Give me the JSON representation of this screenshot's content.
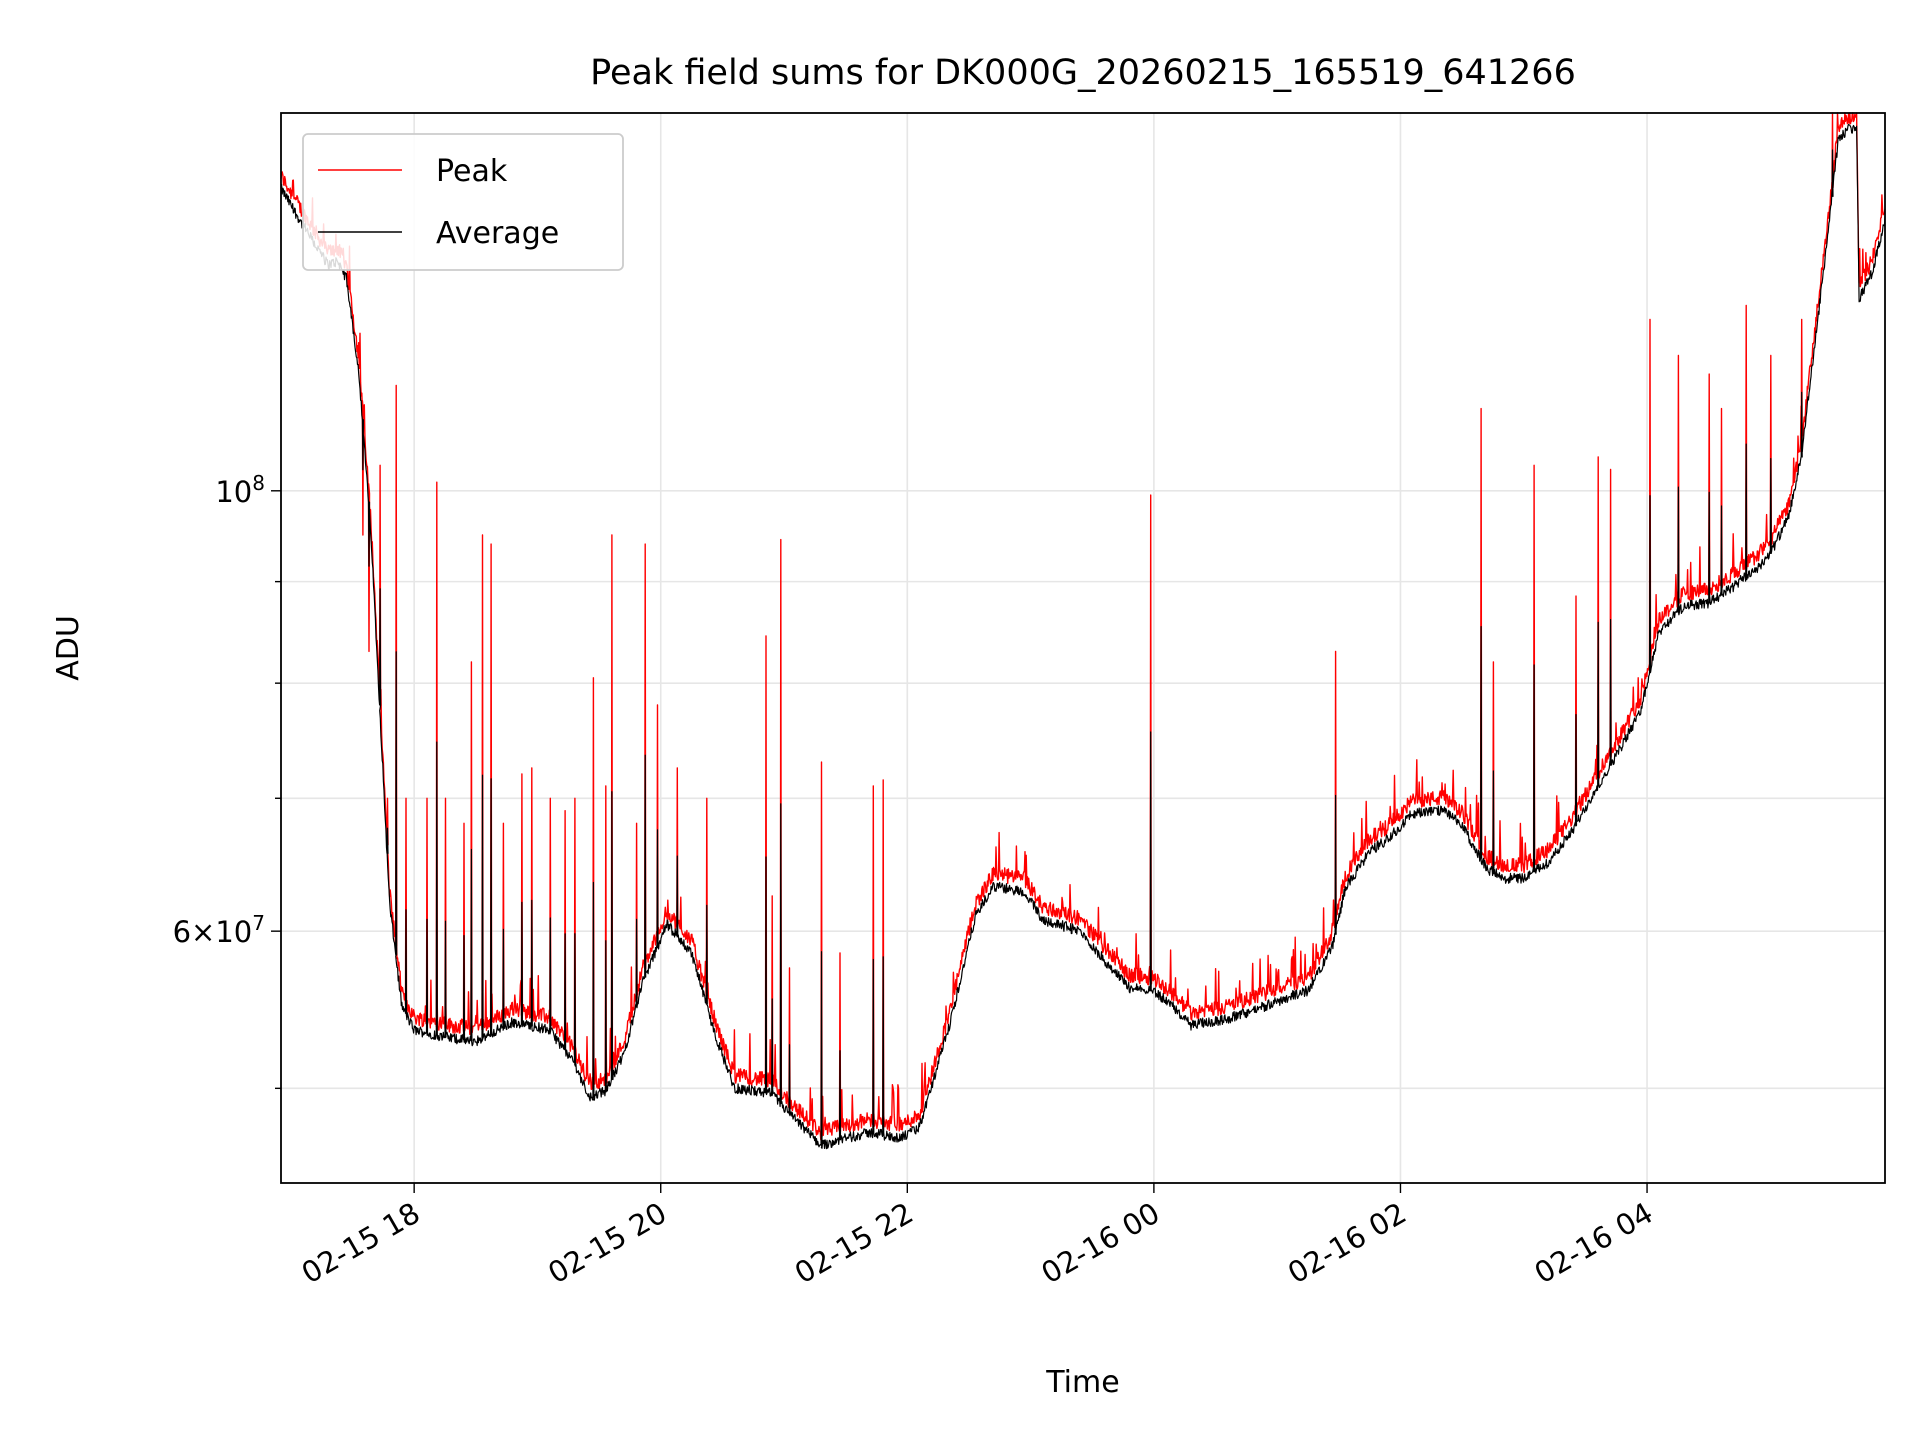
{
  "chart_data": {
    "type": "line",
    "title": "Peak field sums for DK000G_20260215_165519_641266",
    "xlabel": "Time",
    "ylabel": "ADU",
    "yscale": "log",
    "ylim": [
      44800000,
      155000000
    ],
    "xlim_hours": [
      16.92,
      29.93
    ],
    "grid": true,
    "legend_position": "upper-left",
    "x_ticks": [
      {
        "hour": 18,
        "label": "02-15 18"
      },
      {
        "hour": 20,
        "label": "02-15 20"
      },
      {
        "hour": 22,
        "label": "02-15 22"
      },
      {
        "hour": 24,
        "label": "02-16 00"
      },
      {
        "hour": 26,
        "label": "02-16 02"
      },
      {
        "hour": 28,
        "label": "02-16 04"
      }
    ],
    "y_major_ticks": [
      {
        "value": 100000000,
        "base": "10",
        "exp": "8"
      },
      {
        "value": 60000000,
        "mant": "6",
        "base": "10",
        "exp": "7"
      }
    ],
    "y_minor_ticks": [
      50000000,
      70000000,
      80000000,
      90000000
    ],
    "series": [
      {
        "name": "Peak",
        "color": "#ff0000",
        "baseline": [
          [
            16.92,
            142000000
          ],
          [
            17.1,
            136000000
          ],
          [
            17.3,
            130000000
          ],
          [
            17.38,
            130500000
          ],
          [
            17.45,
            128000000
          ],
          [
            17.55,
            115000000
          ],
          [
            17.65,
            95000000
          ],
          [
            17.72,
            78000000
          ],
          [
            17.8,
            62000000
          ],
          [
            17.9,
            55000000
          ],
          [
            18.0,
            53500000
          ],
          [
            18.3,
            53000000
          ],
          [
            18.5,
            52800000
          ],
          [
            18.8,
            54000000
          ],
          [
            19.1,
            53500000
          ],
          [
            19.3,
            51500000
          ],
          [
            19.42,
            49500000
          ],
          [
            19.55,
            49800000
          ],
          [
            19.7,
            52000000
          ],
          [
            19.85,
            56500000
          ],
          [
            20.05,
            60500000
          ],
          [
            20.25,
            58500000
          ],
          [
            20.45,
            53000000
          ],
          [
            20.6,
            50000000
          ],
          [
            20.9,
            49700000
          ],
          [
            21.05,
            48500000
          ],
          [
            21.3,
            46800000
          ],
          [
            21.5,
            47200000
          ],
          [
            21.7,
            47500000
          ],
          [
            21.95,
            47200000
          ],
          [
            22.1,
            47800000
          ],
          [
            22.35,
            54000000
          ],
          [
            22.55,
            61000000
          ],
          [
            22.7,
            63200000
          ],
          [
            22.95,
            62800000
          ],
          [
            23.1,
            60800000
          ],
          [
            23.4,
            60000000
          ],
          [
            23.6,
            58000000
          ],
          [
            23.8,
            56200000
          ],
          [
            24.0,
            56000000
          ],
          [
            24.15,
            55000000
          ],
          [
            24.3,
            53800000
          ],
          [
            24.6,
            54200000
          ],
          [
            24.9,
            55000000
          ],
          [
            25.1,
            55600000
          ],
          [
            25.25,
            56000000
          ],
          [
            25.45,
            59000000
          ],
          [
            25.55,
            63000000
          ],
          [
            25.75,
            65800000
          ],
          [
            25.9,
            66800000
          ],
          [
            26.1,
            68800000
          ],
          [
            26.35,
            69000000
          ],
          [
            26.5,
            67800000
          ],
          [
            26.7,
            64500000
          ],
          [
            26.85,
            63800000
          ],
          [
            27.0,
            63800000
          ],
          [
            27.2,
            65000000
          ],
          [
            27.4,
            67500000
          ],
          [
            27.6,
            71000000
          ],
          [
            27.8,
            74500000
          ],
          [
            27.95,
            77500000
          ],
          [
            28.0,
            80000000
          ],
          [
            28.1,
            85000000
          ],
          [
            28.3,
            87500000
          ],
          [
            28.5,
            87800000
          ],
          [
            28.7,
            89500000
          ],
          [
            28.9,
            91500000
          ],
          [
            29.0,
            93000000
          ],
          [
            29.15,
            97000000
          ],
          [
            29.25,
            104000000
          ],
          [
            29.35,
            117000000
          ],
          [
            29.45,
            132000000
          ],
          [
            29.55,
            150000000
          ],
          [
            29.62,
            152000000
          ],
          [
            29.7,
            152500000
          ],
          [
            29.72,
            125000000
          ],
          [
            29.82,
            128500000
          ],
          [
            29.93,
            137000000
          ]
        ],
        "spikes": [
          [
            17.58,
            95000000
          ],
          [
            17.63,
            83000000
          ],
          [
            17.72,
            103000000
          ],
          [
            17.78,
            70000000
          ],
          [
            17.85,
            113000000
          ],
          [
            17.93,
            70000000
          ],
          [
            18.1,
            70000000
          ],
          [
            18.18,
            101000000
          ],
          [
            18.25,
            70000000
          ],
          [
            18.4,
            68000000
          ],
          [
            18.46,
            82000000
          ],
          [
            18.55,
            95000000
          ],
          [
            18.62,
            94000000
          ],
          [
            18.72,
            68000000
          ],
          [
            18.87,
            72000000
          ],
          [
            18.95,
            72500000
          ],
          [
            19.1,
            70000000
          ],
          [
            19.22,
            69000000
          ],
          [
            19.3,
            70000000
          ],
          [
            19.45,
            80500000
          ],
          [
            19.55,
            71000000
          ],
          [
            19.6,
            95000000
          ],
          [
            19.8,
            68000000
          ],
          [
            19.87,
            94000000
          ],
          [
            19.97,
            78000000
          ],
          [
            20.13,
            72500000
          ],
          [
            20.37,
            70000000
          ],
          [
            20.85,
            84500000
          ],
          [
            20.9,
            62500000
          ],
          [
            20.97,
            94500000
          ],
          [
            21.04,
            57500000
          ],
          [
            21.3,
            73000000
          ],
          [
            21.45,
            58500000
          ],
          [
            21.72,
            71000000
          ],
          [
            21.8,
            71500000
          ],
          [
            23.97,
            99500000
          ],
          [
            25.47,
            83000000
          ],
          [
            26.65,
            110000000
          ],
          [
            26.75,
            82000000
          ],
          [
            27.08,
            103000000
          ],
          [
            27.42,
            88500000
          ],
          [
            27.6,
            104000000
          ],
          [
            27.7,
            102500000
          ],
          [
            28.02,
            122000000
          ],
          [
            28.25,
            117000000
          ],
          [
            28.5,
            114500000
          ],
          [
            28.6,
            110000000
          ],
          [
            28.8,
            124000000
          ],
          [
            29.0,
            117000000
          ],
          [
            29.25,
            122000000
          ],
          [
            29.5,
            158000000
          ]
        ]
      },
      {
        "name": "Average",
        "color": "#000000"
      }
    ]
  }
}
